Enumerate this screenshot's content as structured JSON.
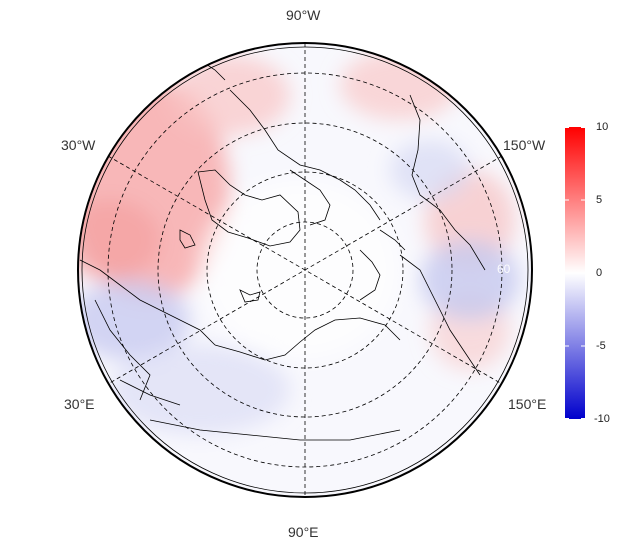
{
  "map": {
    "projection": "north-polar-stereographic",
    "longitude_labels": [
      {
        "id": "lon-90w",
        "text": "90°W"
      },
      {
        "id": "lon-30w",
        "text": "30°W"
      },
      {
        "id": "lon-150w",
        "text": "150°W"
      },
      {
        "id": "lon-30e",
        "text": "30°E"
      },
      {
        "id": "lon-150e",
        "text": "150°E"
      },
      {
        "id": "lon-90e",
        "text": "90°E"
      }
    ],
    "hidden_latitude_label": "60",
    "colors": {
      "positive": "#ff0000",
      "neutral": "#ffffff",
      "negative": "#0000cc",
      "coast": "#000000",
      "grid": "#000000"
    }
  },
  "colorbar": {
    "min": -10,
    "max": 10,
    "ticks": [
      "10",
      "5",
      "0",
      "-5",
      "-10"
    ]
  }
}
